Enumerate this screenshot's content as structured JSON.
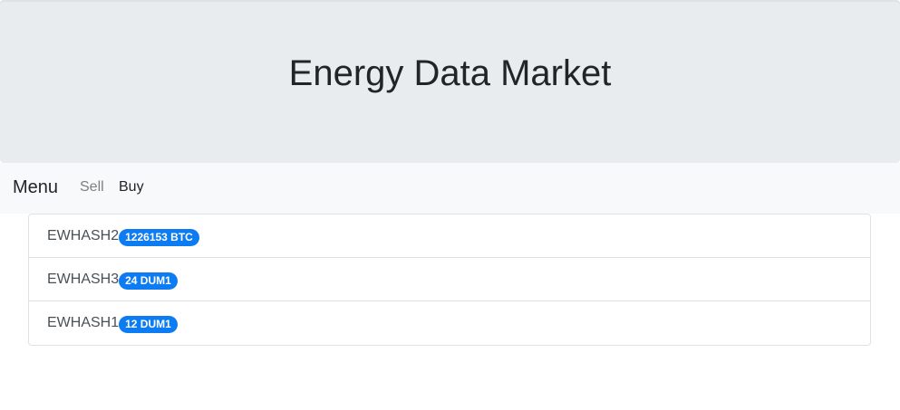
{
  "header": {
    "title": "Energy Data Market"
  },
  "nav": {
    "brand": "Menu",
    "links": [
      {
        "label": "Sell"
      },
      {
        "label": "Buy"
      }
    ]
  },
  "listings": [
    {
      "name": "EWHASH2",
      "price": "1226153 BTC"
    },
    {
      "name": "EWHASH3",
      "price": "24 DUM1"
    },
    {
      "name": "EWHASH1",
      "price": "12 DUM1"
    }
  ],
  "colors": {
    "badge": "#0d7cf2",
    "jumbotron": "#e9ecef",
    "navbar": "#f8f9fa"
  }
}
